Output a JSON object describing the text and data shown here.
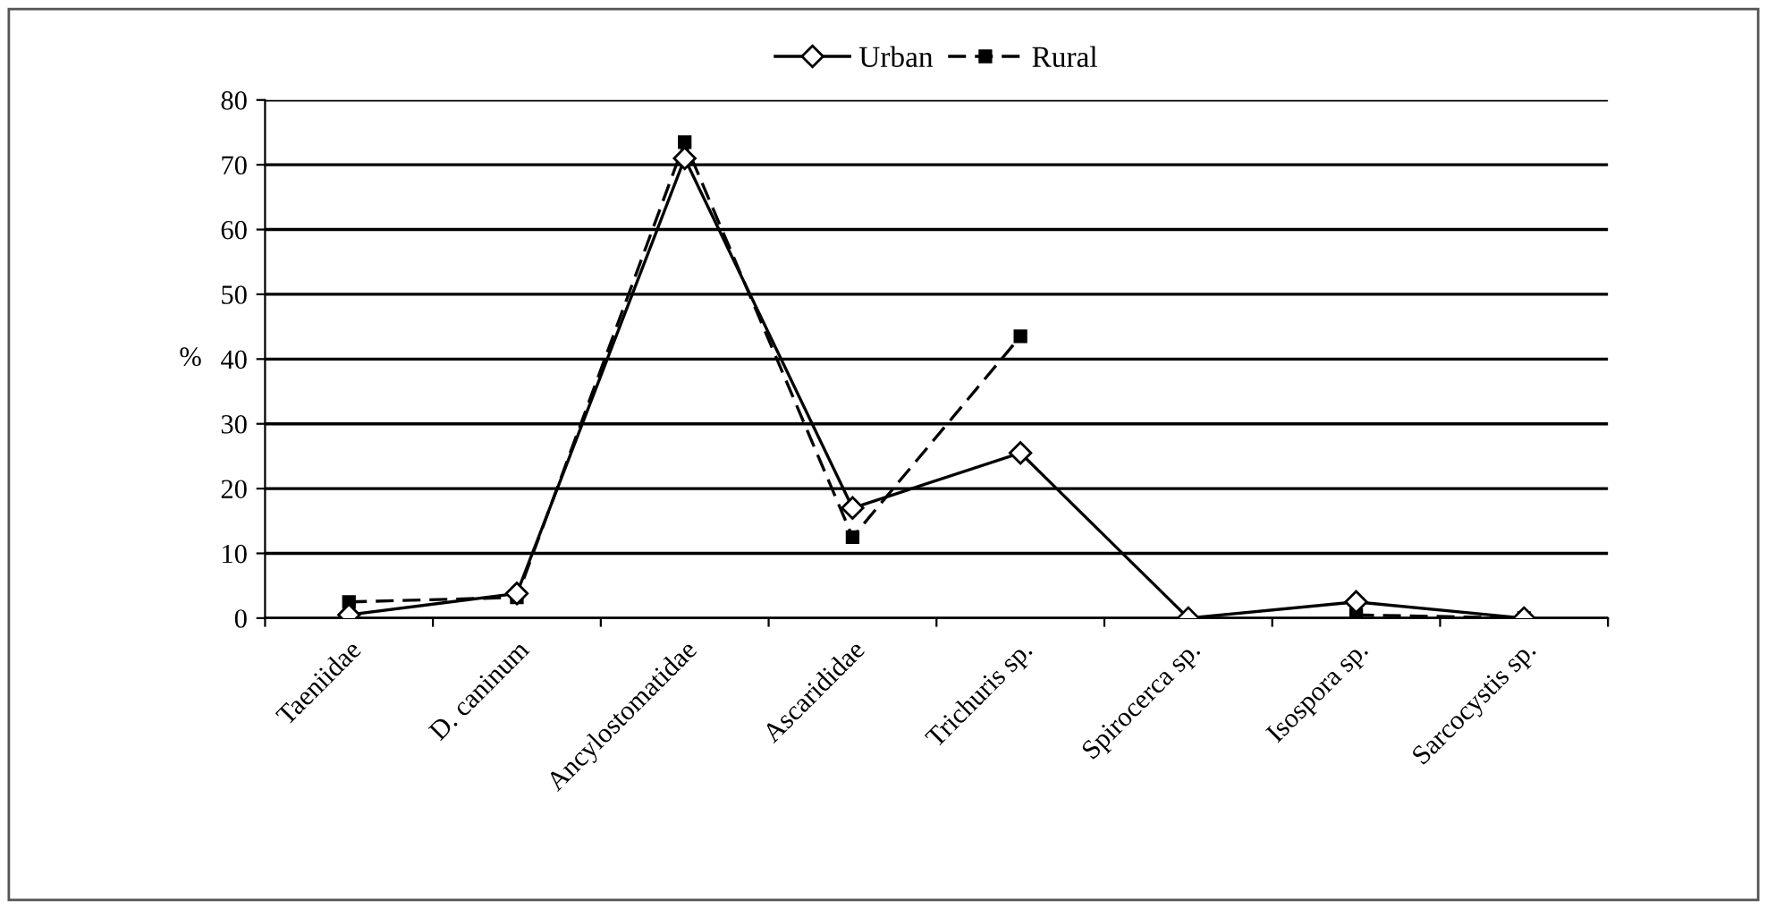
{
  "chart_data": {
    "type": "line",
    "ylabel": "%",
    "categories": [
      "Taeniidae",
      "D. caninum",
      "Ancylostomatidae",
      "Ascarididae",
      "Trichuris sp.",
      "Spirocerca sp.",
      "Isospora sp.",
      "Sarcocystis sp."
    ],
    "series": [
      {
        "name": "Urban",
        "color": "#000000",
        "marker": "diamond",
        "line_style": "solid",
        "values": [
          0.5,
          3.8,
          71,
          17,
          25.5,
          0,
          2.5,
          0
        ]
      },
      {
        "name": "Rural",
        "color": "#000000",
        "marker": "square",
        "line_style": "dashed",
        "values": [
          2.5,
          3.2,
          73.5,
          12.5,
          43.5,
          null,
          0.5,
          0
        ]
      }
    ],
    "ylim": [
      0,
      80
    ],
    "yticks": [
      0,
      10,
      20,
      30,
      40,
      50,
      60,
      70,
      80
    ],
    "grid": "y",
    "legend": "top"
  }
}
